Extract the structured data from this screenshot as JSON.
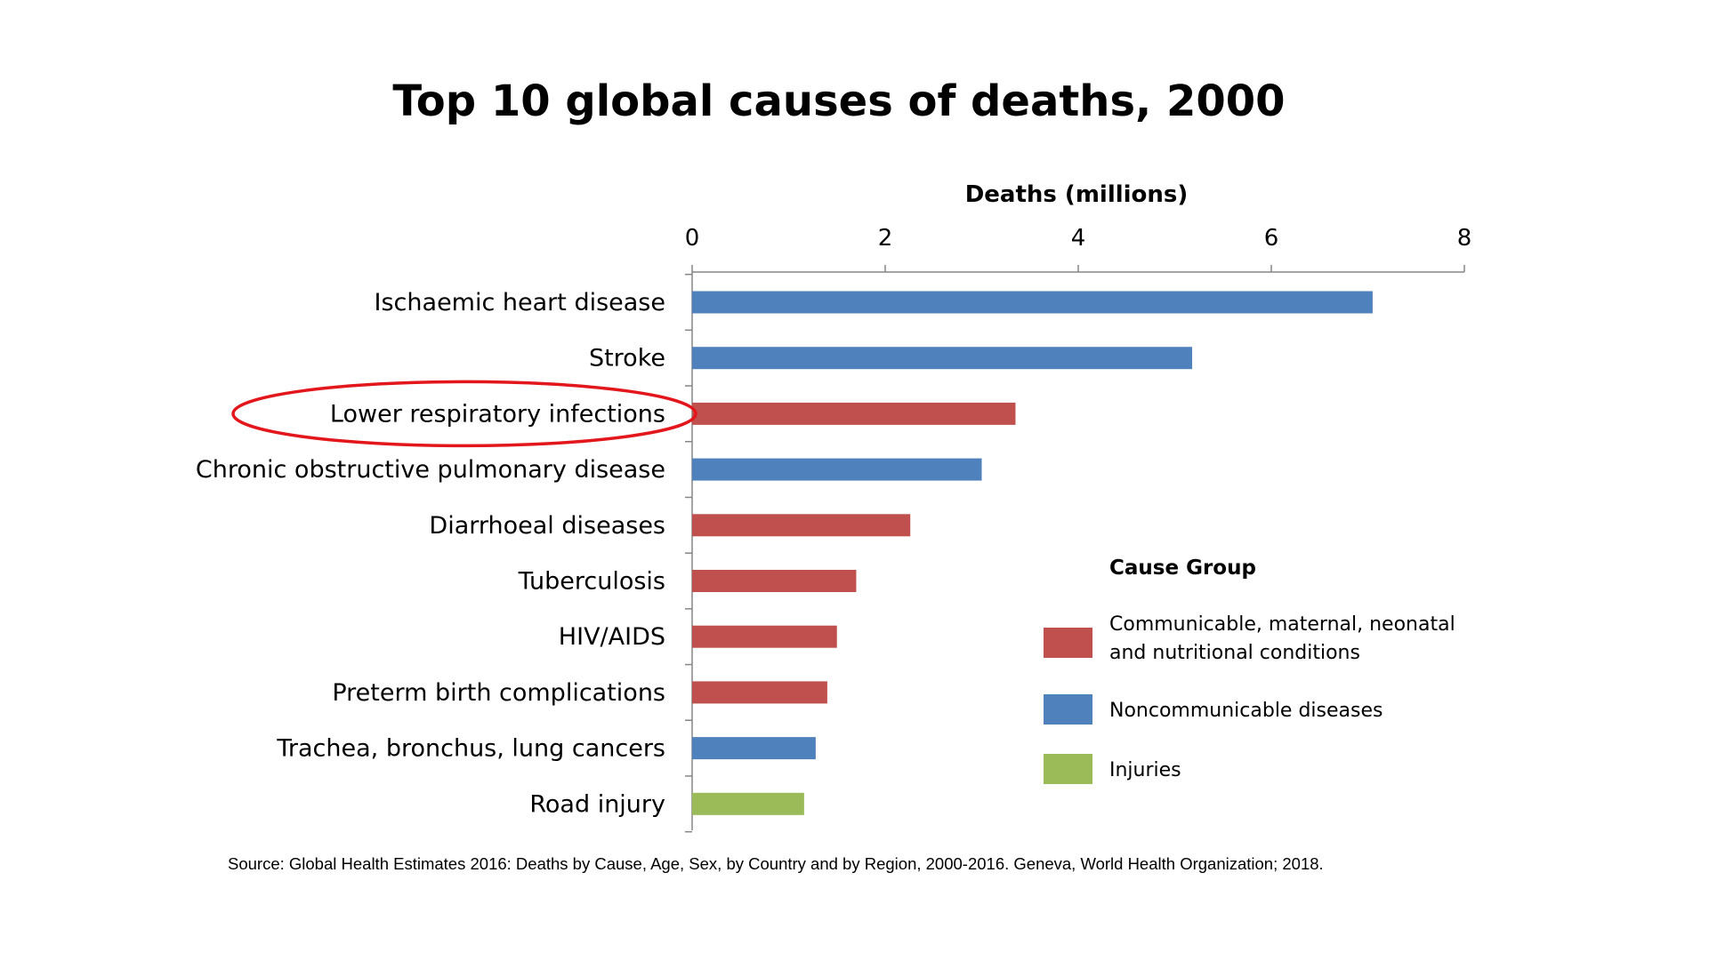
{
  "chart_data": {
    "type": "bar",
    "orientation": "horizontal",
    "title": "Top 10 global causes of deaths, 2000",
    "xlabel": "Deaths (millions)",
    "xlim": [
      0,
      8
    ],
    "xticks": [
      "0",
      "2",
      "4",
      "6",
      "8"
    ],
    "categories": [
      "Ischaemic heart disease",
      "Stroke",
      "Lower respiratory infections",
      "Chronic obstructive pulmonary disease",
      "Diarrhoeal diseases",
      "Tuberculosis",
      "HIV/AIDS",
      "Preterm birth complications",
      "Trachea, bronchus, lung cancers",
      "Road injury"
    ],
    "values": [
      7.05,
      5.18,
      3.35,
      3.0,
      2.26,
      1.7,
      1.5,
      1.4,
      1.28,
      1.16
    ],
    "groups": [
      "Noncommunicable diseases",
      "Noncommunicable diseases",
      "Communicable, maternal, neonatal and nutritional conditions",
      "Noncommunicable diseases",
      "Communicable, maternal, neonatal and nutritional conditions",
      "Communicable, maternal, neonatal and nutritional conditions",
      "Communicable, maternal, neonatal and nutritional conditions",
      "Communicable, maternal, neonatal and nutritional conditions",
      "Noncommunicable diseases",
      "Injuries"
    ],
    "highlighted_category": "Lower respiratory infections",
    "legend": {
      "title": "Cause Group",
      "placement": "bottom-right",
      "entries": [
        {
          "name": "Communicable, maternal, neonatal and nutritional conditions",
          "lines": [
            "Communicable, maternal, neonatal",
            "and nutritional conditions"
          ],
          "color": "#c0504d"
        },
        {
          "name": "Noncommunicable diseases",
          "lines": [
            "Noncommunicable diseases"
          ],
          "color": "#4f81bd"
        },
        {
          "name": "Injuries",
          "lines": [
            "Injuries"
          ],
          "color": "#9bbb59"
        }
      ]
    },
    "grid": false,
    "source": "Source:  Global Health Estimates  2016: Deaths by Cause, Age,  Sex,  by Country and by Region,  2000-2016. Geneva, World Health Organization;  2018."
  },
  "colors": {
    "Communicable, maternal, neonatal and nutritional conditions": "#c0504d",
    "Noncommunicable diseases": "#4f81bd",
    "Injuries": "#9bbb59",
    "highlight_ellipse": "#e3161b",
    "axis": "#868686"
  }
}
